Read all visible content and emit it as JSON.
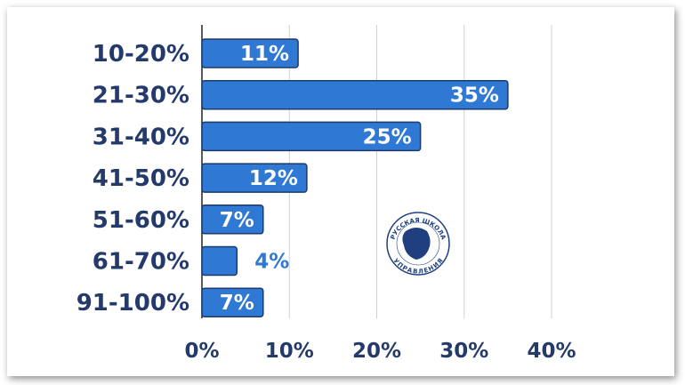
{
  "chart_data": {
    "type": "bar",
    "orientation": "horizontal",
    "categories": [
      "10-20%",
      "21-30%",
      "31-40%",
      "41-50%",
      "51-60%",
      "61-70%",
      "91-100%"
    ],
    "values": [
      11,
      35,
      25,
      12,
      7,
      4,
      7
    ],
    "data_labels": [
      "11%",
      "35%",
      "25%",
      "12%",
      "7%",
      "4%",
      "7%"
    ],
    "xlim": [
      0,
      40
    ],
    "xticks": [
      0,
      10,
      20,
      30,
      40
    ],
    "xtick_labels": [
      "0%",
      "10%",
      "20%",
      "30%",
      "40%"
    ],
    "grid": true,
    "title": "",
    "xlabel": "",
    "ylabel": "",
    "colors": {
      "bar": "#2f78d3",
      "bar_border": "#1d3a6a",
      "text": "#243a6b",
      "label_inside": "#ffffff",
      "label_outside": "#2f78d3",
      "grid": "#d0d0d0"
    }
  },
  "logo": {
    "text_top": "РУССКАЯ ШКОЛА",
    "text_bottom": "УПРАВЛЕНИЯ",
    "color": "#1f3f7f"
  }
}
